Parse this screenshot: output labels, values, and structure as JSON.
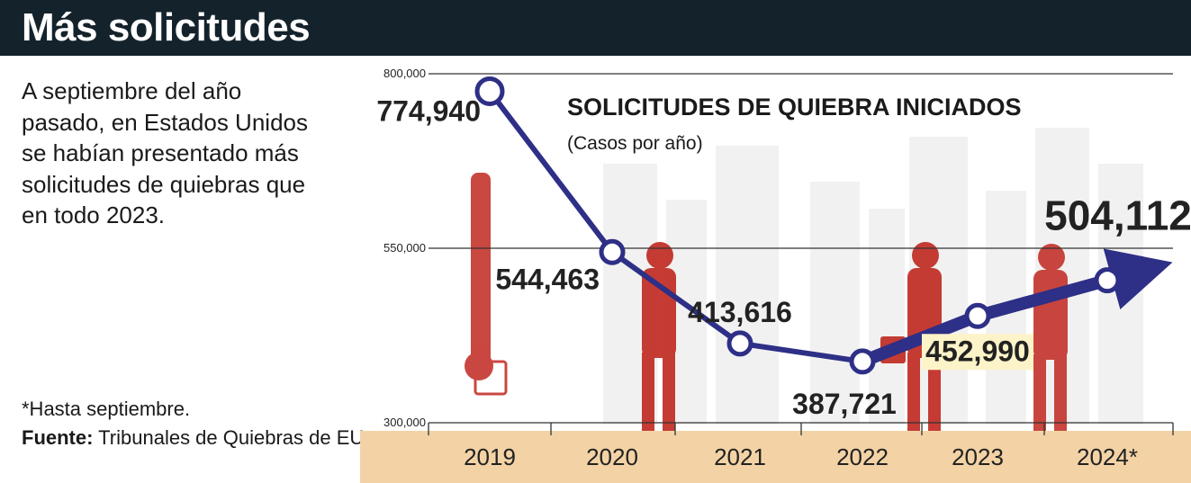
{
  "header": {
    "title": "Más solicitudes"
  },
  "lede": "A septiembre del año pasado, en Estados Unidos se habían presentado más solicitudes de quiebras que en todo 2023.",
  "footnote": "*Hasta septiembre.",
  "source": {
    "label": "Fuente:",
    "value": "Tribunales de Quiebras de EU"
  },
  "colors": {
    "line": "#2e2f86",
    "band": "#f3d3a5",
    "header": "#14232b",
    "figure": "#c0281f"
  },
  "chart_data": {
    "type": "line",
    "title": "SOLICITUDES DE QUIEBRA INICIADOS",
    "subtitle": "(Casos por año)",
    "categories": [
      "2019",
      "2020",
      "2021",
      "2022",
      "2023",
      "2024*"
    ],
    "values": [
      774940,
      544463,
      413616,
      387721,
      452990,
      504112
    ],
    "labels": [
      "774,940",
      "544,463",
      "413,616",
      "387,721",
      "452,990",
      "504,112"
    ],
    "yticks": [
      {
        "value": 800000,
        "label": "800,000"
      },
      {
        "value": 550000,
        "label": "550,000"
      },
      {
        "value": 300000,
        "label": "300,000"
      }
    ],
    "ylim": [
      300000,
      800000
    ],
    "grid": true
  }
}
